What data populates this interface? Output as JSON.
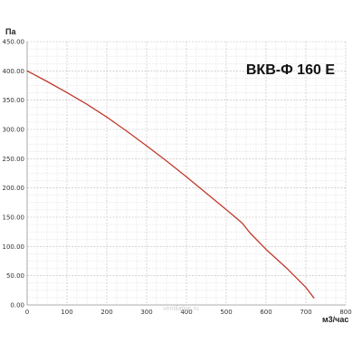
{
  "chart_data": {
    "type": "line",
    "title": "ВКВ-Ф 160 Е",
    "xlabel": "м3/час",
    "ylabel": "Па",
    "xlim": [
      0,
      800
    ],
    "ylim": [
      0,
      450
    ],
    "x_ticks": [
      "0",
      "100",
      "200",
      "300",
      "400",
      "500",
      "600",
      "700",
      "800"
    ],
    "y_ticks": [
      "0.00",
      "50.00",
      "100.00",
      "150.00",
      "200.00",
      "250.00",
      "300.00",
      "350.00",
      "400.00",
      "450.00"
    ],
    "grid": true,
    "series": [
      {
        "color": "#c0392b",
        "x": [
          0,
          50,
          100,
          150,
          200,
          250,
          300,
          350,
          400,
          450,
          500,
          540,
          560,
          600,
          650,
          700,
          720
        ],
        "y": [
          400,
          382,
          363,
          343,
          321,
          297,
          272,
          246,
          219,
          191,
          163,
          140,
          123,
          95,
          64,
          30,
          12
        ]
      }
    ]
  },
  "watermark": "ventilation.ru"
}
